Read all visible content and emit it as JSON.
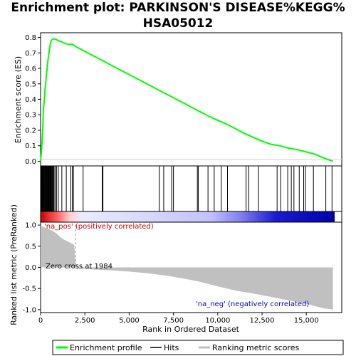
{
  "title_line1": "Enrichment plot: PARKINSON'S DISEASE%KEGG%",
  "title_line2": "HSA05012",
  "colors": {
    "enrichment": "#00ff00",
    "hits": "#000000",
    "metric": "#c0c0c0",
    "pos_label": "#cc0000",
    "neg_label": "#0000cc"
  },
  "chart_data": [
    {
      "type": "line",
      "ylabel": "Enrichment score (ES)",
      "xlim": [
        0,
        17000
      ],
      "ylim": [
        -0.03,
        0.83
      ],
      "yticks": [
        "0.0",
        "0.1",
        "0.2",
        "0.3",
        "0.4",
        "0.5",
        "0.6",
        "0.7",
        "0.8"
      ],
      "ytick_values": [
        0.0,
        0.1,
        0.2,
        0.3,
        0.4,
        0.5,
        0.6,
        0.7,
        0.8
      ],
      "x": [
        0,
        40,
        80,
        120,
        160,
        200,
        250,
        300,
        350,
        400,
        450,
        500,
        550,
        600,
        650,
        700,
        800,
        900,
        1000,
        1200,
        1400,
        1600,
        1800,
        2000,
        2500,
        3000,
        3500,
        4000,
        4500,
        5000,
        5500,
        6000,
        6500,
        7000,
        7500,
        8000,
        8500,
        9000,
        9500,
        10000,
        10500,
        11000,
        11500,
        12000,
        12500,
        13000,
        13500,
        14000,
        14500,
        15000,
        15500,
        16000,
        16500
      ],
      "y": [
        0.0,
        0.05,
        0.12,
        0.2,
        0.34,
        0.38,
        0.46,
        0.52,
        0.58,
        0.64,
        0.68,
        0.72,
        0.76,
        0.78,
        0.785,
        0.79,
        0.79,
        0.785,
        0.78,
        0.77,
        0.76,
        0.755,
        0.755,
        0.74,
        0.71,
        0.68,
        0.65,
        0.62,
        0.59,
        0.56,
        0.53,
        0.5,
        0.47,
        0.44,
        0.41,
        0.38,
        0.35,
        0.32,
        0.29,
        0.265,
        0.24,
        0.21,
        0.18,
        0.155,
        0.13,
        0.11,
        0.1,
        0.085,
        0.075,
        0.06,
        0.045,
        0.02,
        0.0
      ],
      "series": [
        {
          "name": "Enrichment profile"
        }
      ]
    },
    {
      "type": "barcode",
      "hits": [
        20,
        40,
        60,
        90,
        120,
        150,
        180,
        220,
        260,
        300,
        330,
        360,
        390,
        420,
        450,
        480,
        510,
        540,
        570,
        600,
        640,
        680,
        720,
        760,
        820,
        900,
        1000,
        1200,
        1450,
        1700,
        1800,
        1850,
        2400,
        3480,
        3520,
        6700,
        6950,
        7400,
        7500,
        8850,
        8900,
        9450,
        9800,
        10200,
        10550,
        11600,
        11750,
        12300,
        13350,
        13550,
        13950,
        14150,
        14300,
        14600,
        14850,
        14950,
        15400,
        16100,
        16450
      ],
      "series": [
        {
          "name": "Hits"
        }
      ]
    },
    {
      "type": "area",
      "xlabel": "Rank in Ordered Dataset",
      "ylabel": "Ranked list metric (PreRanked)",
      "xlim": [
        0,
        17000
      ],
      "ylim": [
        -1.07,
        1.07
      ],
      "xticks": [
        "0",
        "2,500",
        "5,000",
        "7,500",
        "10,000",
        "12,500",
        "15,000"
      ],
      "xtick_values": [
        0,
        2500,
        5000,
        7500,
        10000,
        12500,
        15000
      ],
      "yticks": [
        "1.0",
        "0.5",
        "0.0",
        "-0.5",
        "-1.0"
      ],
      "ytick_values": [
        1.0,
        0.5,
        0.0,
        -0.5,
        -1.0
      ],
      "x": [
        0,
        100,
        300,
        500,
        700,
        900,
        1100,
        1300,
        1500,
        1700,
        1900,
        1984,
        2100,
        3000,
        4000,
        5000,
        6000,
        7000,
        8000,
        9000,
        10000,
        11000,
        12000,
        13000,
        14000,
        15000,
        15500,
        16000,
        16500
      ],
      "y": [
        1.0,
        0.96,
        0.93,
        0.9,
        0.86,
        0.8,
        0.72,
        0.66,
        0.62,
        0.58,
        0.53,
        0.0,
        -0.02,
        -0.05,
        -0.07,
        -0.1,
        -0.14,
        -0.19,
        -0.26,
        -0.34,
        -0.45,
        -0.55,
        -0.62,
        -0.7,
        -0.78,
        -0.86,
        -0.92,
        -0.97,
        -1.0
      ],
      "annotations": {
        "pos": "'na_pos' (positively correlated)",
        "neg": "'na_neg' (negatively correlated)",
        "zero": "Zero cross at 1984"
      },
      "zero_cross": 1984,
      "series": [
        {
          "name": "Ranking metric scores"
        }
      ]
    }
  ]
}
